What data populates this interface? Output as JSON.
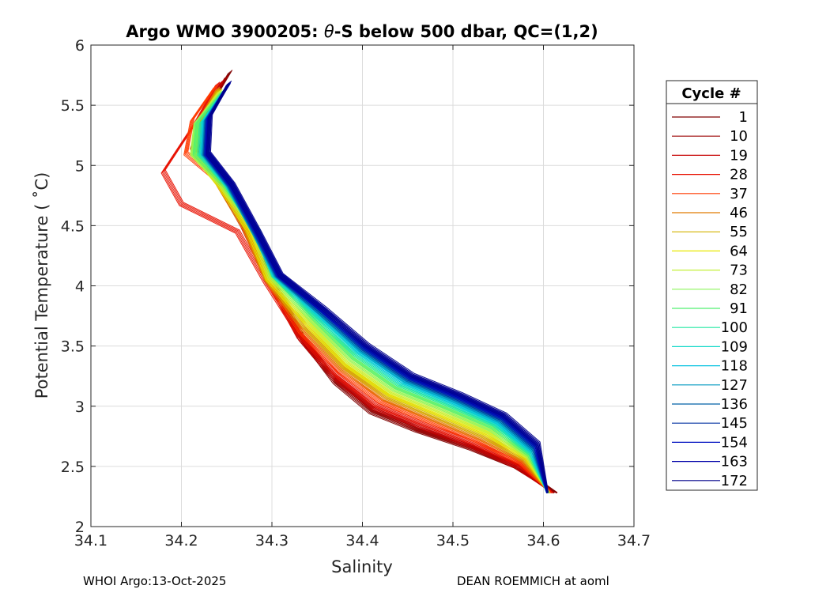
{
  "chart_data": {
    "type": "line",
    "title_prefix": "Argo WMO 3900205: ",
    "title_symbol": "θ",
    "title_suffix": "-S below 500 dbar,  QC=(1,2)",
    "xlabel": "Salinity",
    "ylabel": "Potential Temperature ( ˚C)",
    "xlim": [
      34.1,
      34.7
    ],
    "ylim": [
      2,
      6
    ],
    "xticks": [
      34.1,
      34.2,
      34.3,
      34.4,
      34.5,
      34.6,
      34.7
    ],
    "xtick_labels": [
      "34.1",
      "34.2",
      "34.3",
      "34.4",
      "34.5",
      "34.6",
      "34.7"
    ],
    "yticks": [
      2,
      2.5,
      3,
      3.5,
      4,
      4.5,
      5,
      5.5,
      6
    ],
    "ytick_labels": [
      "2",
      "2.5",
      "3",
      "3.5",
      "4",
      "4.5",
      "5",
      "5.5",
      "6"
    ],
    "grid": true,
    "legend": {
      "title": "Cycle #",
      "placement": "outside-right",
      "entries": [
        {
          "label": "1",
          "color": "#800000"
        },
        {
          "label": "10",
          "color": "#9c0000"
        },
        {
          "label": "19",
          "color": "#c70000"
        },
        {
          "label": "28",
          "color": "#e81000"
        },
        {
          "label": "37",
          "color": "#ff3a00"
        },
        {
          "label": "46",
          "color": "#e07b00"
        },
        {
          "label": "55",
          "color": "#d4b300"
        },
        {
          "label": "64",
          "color": "#e8e800"
        },
        {
          "label": "73",
          "color": "#c4f038"
        },
        {
          "label": "82",
          "color": "#8cf55a"
        },
        {
          "label": "91",
          "color": "#50f070"
        },
        {
          "label": "100",
          "color": "#20e8a0"
        },
        {
          "label": "109",
          "color": "#10d8c8"
        },
        {
          "label": "118",
          "color": "#00c0e0"
        },
        {
          "label": "127",
          "color": "#0098c0"
        },
        {
          "label": "136",
          "color": "#0060a8"
        },
        {
          "label": "145",
          "color": "#0030a0"
        },
        {
          "label": "154",
          "color": "#0010c0"
        },
        {
          "label": "163",
          "color": "#0000a8"
        },
        {
          "label": "172",
          "color": "#00008c"
        }
      ]
    },
    "series": [
      {
        "name": "1",
        "color": "#800000",
        "x": [
          34.254,
          34.228,
          34.225,
          34.245,
          34.275,
          34.3,
          34.335,
          34.37,
          34.41,
          34.46,
          34.52,
          34.57,
          34.615
        ],
        "y": [
          5.78,
          5.45,
          5.1,
          4.85,
          4.45,
          4.05,
          3.55,
          3.2,
          2.95,
          2.8,
          2.65,
          2.5,
          2.28
        ]
      },
      {
        "name": "10",
        "color": "#9c0000",
        "x": [
          34.25,
          34.226,
          34.22,
          34.24,
          34.272,
          34.298,
          34.332,
          34.37,
          34.412,
          34.462,
          34.52,
          34.57,
          34.612
        ],
        "y": [
          5.74,
          5.42,
          5.12,
          4.88,
          4.47,
          4.05,
          3.56,
          3.22,
          2.97,
          2.81,
          2.66,
          2.5,
          2.28
        ]
      },
      {
        "name": "19",
        "color": "#c70000",
        "x": [
          34.245,
          34.222,
          34.212,
          34.238,
          34.268,
          34.296,
          34.33,
          34.37,
          34.412,
          34.465,
          34.522,
          34.572,
          34.61
        ],
        "y": [
          5.7,
          5.4,
          5.15,
          4.9,
          4.5,
          4.05,
          3.58,
          3.24,
          2.99,
          2.83,
          2.67,
          2.5,
          2.28
        ]
      },
      {
        "name": "28",
        "color": "#e81000",
        "x": [
          34.24,
          34.215,
          34.18,
          34.2,
          34.262,
          34.292,
          34.33,
          34.372,
          34.415,
          34.468,
          34.525,
          34.574,
          34.61
        ],
        "y": [
          5.68,
          5.35,
          4.95,
          4.68,
          4.45,
          4.05,
          3.6,
          3.26,
          3.01,
          2.85,
          2.69,
          2.52,
          2.28
        ]
      },
      {
        "name": "37",
        "color": "#ff3a00",
        "x": [
          34.238,
          34.212,
          34.205,
          34.24,
          34.27,
          34.294,
          34.332,
          34.375,
          34.42,
          34.472,
          34.528,
          34.576,
          34.608
        ],
        "y": [
          5.66,
          5.38,
          5.1,
          4.88,
          4.5,
          4.06,
          3.62,
          3.29,
          3.04,
          2.88,
          2.71,
          2.53,
          2.28
        ]
      },
      {
        "name": "46",
        "color": "#e07b00",
        "x": [
          34.24,
          34.22,
          34.216,
          34.24,
          34.27,
          34.294,
          34.335,
          34.378,
          34.425,
          34.476,
          34.532,
          34.578,
          34.607
        ],
        "y": [
          5.64,
          5.38,
          5.1,
          4.86,
          4.48,
          4.06,
          3.64,
          3.31,
          3.06,
          2.9,
          2.73,
          2.55,
          2.28
        ]
      },
      {
        "name": "55",
        "color": "#d4b300",
        "x": [
          34.241,
          34.221,
          34.216,
          34.242,
          34.272,
          34.295,
          34.337,
          34.38,
          34.428,
          34.48,
          34.535,
          34.58,
          34.607
        ],
        "y": [
          5.63,
          5.37,
          5.1,
          4.85,
          4.48,
          4.06,
          3.66,
          3.33,
          3.08,
          2.92,
          2.75,
          2.56,
          2.28
        ]
      },
      {
        "name": "64",
        "color": "#e8e800",
        "x": [
          34.242,
          34.218,
          34.214,
          34.242,
          34.274,
          34.296,
          34.34,
          34.382,
          34.43,
          34.483,
          34.538,
          34.582,
          34.606
        ],
        "y": [
          5.62,
          5.37,
          5.1,
          4.84,
          4.47,
          4.06,
          3.68,
          3.35,
          3.1,
          2.94,
          2.77,
          2.57,
          2.28
        ]
      },
      {
        "name": "73",
        "color": "#c4f038",
        "x": [
          34.243,
          34.216,
          34.212,
          34.244,
          34.278,
          34.298,
          34.342,
          34.385,
          34.433,
          34.486,
          34.54,
          34.583,
          34.606
        ],
        "y": [
          5.62,
          5.36,
          5.1,
          4.84,
          4.47,
          4.07,
          3.7,
          3.37,
          3.12,
          2.96,
          2.79,
          2.58,
          2.28
        ]
      },
      {
        "name": "82",
        "color": "#8cf55a",
        "x": [
          34.244,
          34.216,
          34.213,
          34.246,
          34.282,
          34.3,
          34.344,
          34.388,
          34.436,
          34.489,
          34.542,
          34.584,
          34.606
        ],
        "y": [
          5.61,
          5.36,
          5.1,
          4.84,
          4.46,
          4.08,
          3.72,
          3.39,
          3.14,
          2.98,
          2.81,
          2.59,
          2.28
        ]
      },
      {
        "name": "91",
        "color": "#50f070",
        "x": [
          34.245,
          34.218,
          34.215,
          34.248,
          34.285,
          34.302,
          34.346,
          34.39,
          34.438,
          34.491,
          34.544,
          34.585,
          34.605
        ],
        "y": [
          5.61,
          5.36,
          5.1,
          4.84,
          4.45,
          4.09,
          3.74,
          3.41,
          3.16,
          3.0,
          2.83,
          2.6,
          2.28
        ]
      },
      {
        "name": "100",
        "color": "#20e8a0",
        "x": [
          34.246,
          34.222,
          34.22,
          34.25,
          34.283,
          34.302,
          34.348,
          34.393,
          34.441,
          34.494,
          34.546,
          34.586,
          34.605
        ],
        "y": [
          5.61,
          5.36,
          5.1,
          4.84,
          4.44,
          4.09,
          3.75,
          3.43,
          3.18,
          3.02,
          2.85,
          2.61,
          2.28
        ]
      },
      {
        "name": "109",
        "color": "#10d8c8",
        "x": [
          34.247,
          34.224,
          34.222,
          34.251,
          34.282,
          34.303,
          34.35,
          34.396,
          34.444,
          34.497,
          34.548,
          34.587,
          34.604
        ],
        "y": [
          5.62,
          5.37,
          5.1,
          4.84,
          4.44,
          4.09,
          3.76,
          3.44,
          3.19,
          3.03,
          2.86,
          2.62,
          2.28
        ]
      },
      {
        "name": "118",
        "color": "#00c0e0",
        "x": [
          34.248,
          34.226,
          34.224,
          34.252,
          34.281,
          34.304,
          34.352,
          34.398,
          34.447,
          34.5,
          34.55,
          34.588,
          34.604
        ],
        "y": [
          5.63,
          5.38,
          5.1,
          4.84,
          4.44,
          4.09,
          3.77,
          3.45,
          3.2,
          3.04,
          2.87,
          2.63,
          2.28
        ]
      },
      {
        "name": "127",
        "color": "#0098c0",
        "x": [
          34.249,
          34.227,
          34.225,
          34.252,
          34.281,
          34.305,
          34.353,
          34.4,
          34.449,
          34.502,
          34.552,
          34.589,
          34.604
        ],
        "y": [
          5.64,
          5.38,
          5.1,
          4.84,
          4.44,
          4.09,
          3.78,
          3.46,
          3.21,
          3.05,
          2.88,
          2.64,
          2.28
        ]
      },
      {
        "name": "136",
        "color": "#0060a8",
        "x": [
          34.25,
          34.228,
          34.226,
          34.253,
          34.282,
          34.306,
          34.354,
          34.401,
          34.451,
          34.504,
          34.553,
          34.59,
          34.604
        ],
        "y": [
          5.65,
          5.39,
          5.1,
          4.84,
          4.44,
          4.09,
          3.78,
          3.47,
          3.22,
          3.06,
          2.89,
          2.65,
          2.28
        ]
      },
      {
        "name": "145",
        "color": "#0030a0",
        "x": [
          34.251,
          34.229,
          34.227,
          34.254,
          34.283,
          34.307,
          34.355,
          34.402,
          34.452,
          34.505,
          34.554,
          34.591,
          34.604
        ],
        "y": [
          5.66,
          5.39,
          5.1,
          4.84,
          4.44,
          4.09,
          3.79,
          3.48,
          3.23,
          3.07,
          2.9,
          2.66,
          2.28
        ]
      },
      {
        "name": "154",
        "color": "#0010c0",
        "x": [
          34.252,
          34.23,
          34.228,
          34.255,
          34.284,
          34.308,
          34.356,
          34.403,
          34.453,
          34.506,
          34.555,
          34.592,
          34.604
        ],
        "y": [
          5.67,
          5.4,
          5.1,
          4.84,
          4.44,
          4.09,
          3.8,
          3.49,
          3.24,
          3.08,
          2.91,
          2.67,
          2.28
        ]
      },
      {
        "name": "163",
        "color": "#0000a8",
        "x": [
          34.252,
          34.231,
          34.229,
          34.256,
          34.285,
          34.309,
          34.357,
          34.404,
          34.454,
          34.507,
          34.556,
          34.593,
          34.604
        ],
        "y": [
          5.68,
          5.4,
          5.1,
          4.84,
          4.44,
          4.09,
          3.8,
          3.5,
          3.25,
          3.09,
          2.92,
          2.68,
          2.28
        ]
      },
      {
        "name": "172",
        "color": "#00008c",
        "x": [
          34.253,
          34.232,
          34.23,
          34.257,
          34.286,
          34.31,
          34.358,
          34.405,
          34.455,
          34.508,
          34.557,
          34.594,
          34.605
        ],
        "y": [
          5.69,
          5.41,
          5.1,
          4.84,
          4.44,
          4.09,
          3.81,
          3.51,
          3.26,
          3.1,
          2.93,
          2.69,
          2.28
        ]
      }
    ]
  },
  "footer": {
    "left": "WHOI Argo:13-Oct-2025",
    "right": "DEAN ROEMMICH at aoml"
  }
}
